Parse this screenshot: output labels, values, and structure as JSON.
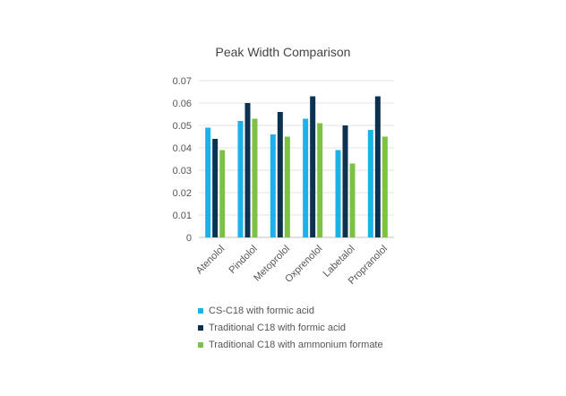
{
  "chart_data": {
    "type": "bar",
    "title": "Peak Width Comparison",
    "xlabel": "",
    "ylabel": "",
    "ylim": [
      0,
      0.07
    ],
    "yticks": [
      0,
      0.01,
      0.02,
      0.03,
      0.04,
      0.05,
      0.06,
      0.07
    ],
    "ytick_labels": [
      "0",
      "0.01",
      "0.02",
      "0.03",
      "0.04",
      "0.05",
      "0.06",
      "0.07"
    ],
    "grid": true,
    "legend_position": "bottom",
    "categories": [
      "Atenolol",
      "Pindolol",
      "Metoprolol",
      "Oxprenolol",
      "Labetalol",
      "Propranolol"
    ],
    "series": [
      {
        "name": "CS-C18 with formic acid",
        "color": "#1ab2e8",
        "values": [
          0.049,
          0.052,
          0.046,
          0.053,
          0.039,
          0.048
        ]
      },
      {
        "name": "Traditional C18 with formic acid",
        "color": "#0b3251",
        "values": [
          0.044,
          0.06,
          0.056,
          0.063,
          0.05,
          0.063
        ]
      },
      {
        "name": "Traditional C18 with ammonium formate",
        "color": "#7dc242",
        "values": [
          0.039,
          0.053,
          0.045,
          0.051,
          0.033,
          0.045
        ]
      }
    ]
  }
}
